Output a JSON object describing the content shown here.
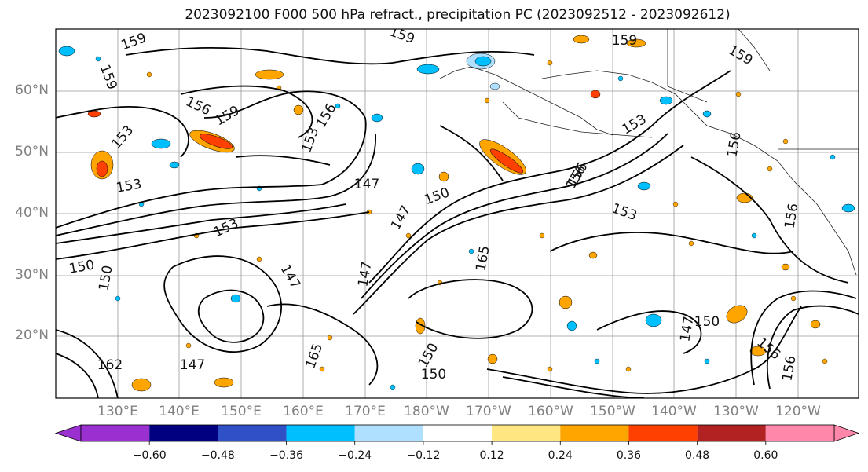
{
  "title": "2023092100 F000 500 hPa refract., precipitation PC (2023092512 - 2023092612)",
  "lat_labels": [
    "60°N",
    "50°N",
    "40°N",
    "30°N",
    "20°N"
  ],
  "lon_labels": [
    "130°E",
    "140°E",
    "150°E",
    "160°E",
    "170°E",
    "180°W",
    "170°W",
    "160°W",
    "150°W",
    "140°W",
    "130°W",
    "120°W"
  ],
  "contour_labels": [
    "159",
    "159",
    "159",
    "156",
    "159",
    "153",
    "156",
    "153",
    "159",
    "153",
    "156",
    "159",
    "156",
    "153",
    "150",
    "153",
    "153",
    "147",
    "150",
    "147",
    "165",
    "150",
    "150",
    "147",
    "150",
    "156",
    "147",
    "147",
    "165",
    "156",
    "162",
    "156",
    "147",
    "150",
    "156"
  ],
  "colorbar": {
    "colors": [
      "#9b30d0",
      "#000080",
      "#3050c8",
      "#00bfff",
      "#b0e0ff",
      "#ffffff",
      "#ffe680",
      "#ffa500",
      "#ff4000",
      "#b22222",
      "#ff88aa"
    ],
    "tick_labels": [
      "−0.60",
      "−0.48",
      "−0.36",
      "−0.24",
      "−0.12",
      "0.12",
      "0.24",
      "0.36",
      "0.48",
      "0.60"
    ]
  }
}
